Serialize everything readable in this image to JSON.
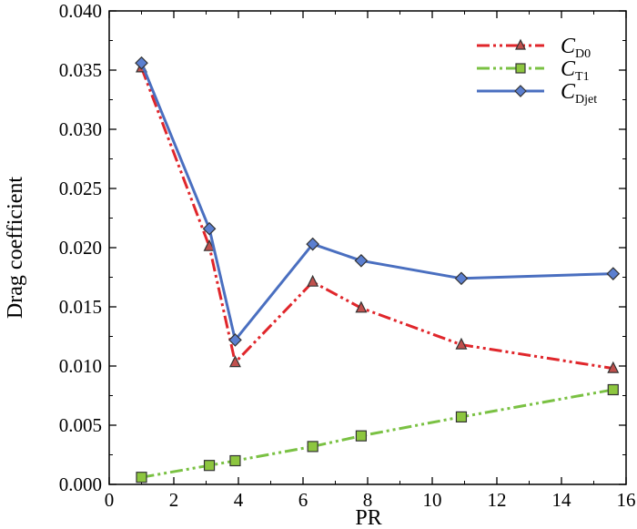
{
  "chart_data": {
    "type": "line",
    "xlabel": "PR",
    "ylabel": "Drag coefficient",
    "xlim": [
      0,
      16
    ],
    "ylim": [
      0,
      0.04
    ],
    "xticks": [
      0,
      2,
      4,
      6,
      8,
      10,
      12,
      14,
      16
    ],
    "yticks": [
      "0.000",
      "0.005",
      "0.010",
      "0.015",
      "0.020",
      "0.025",
      "0.030",
      "0.035",
      "0.040"
    ],
    "grid": false,
    "legend_position": "top-right",
    "series": [
      {
        "name": "C",
        "name_sub": "D0",
        "color": "#e0262b",
        "line_style": "dash-dot-dot",
        "marker": "triangle",
        "marker_fill": "#c0504d",
        "x": [
          1.0,
          3.1,
          3.9,
          6.3,
          7.8,
          10.9,
          15.6
        ],
        "y": [
          0.0352,
          0.0201,
          0.0103,
          0.0171,
          0.0149,
          0.0118,
          0.0098
        ]
      },
      {
        "name": "C",
        "name_sub": "T1",
        "color": "#7ac143",
        "line_style": "dash-dot-dot",
        "marker": "square",
        "marker_fill": "#8dc63f",
        "x": [
          1.0,
          3.1,
          3.9,
          6.3,
          7.8,
          10.9,
          15.6
        ],
        "y": [
          0.0006,
          0.0016,
          0.002,
          0.0032,
          0.0041,
          0.0057,
          0.008
        ]
      },
      {
        "name": "C",
        "name_sub": "Djet",
        "color": "#4a6fc0",
        "line_style": "solid",
        "marker": "diamond",
        "marker_fill": "#5b7fd0",
        "x": [
          1.0,
          3.1,
          3.9,
          6.3,
          7.8,
          10.9,
          15.6
        ],
        "y": [
          0.0356,
          0.0216,
          0.0122,
          0.0203,
          0.0189,
          0.0174,
          0.0178
        ]
      }
    ]
  }
}
